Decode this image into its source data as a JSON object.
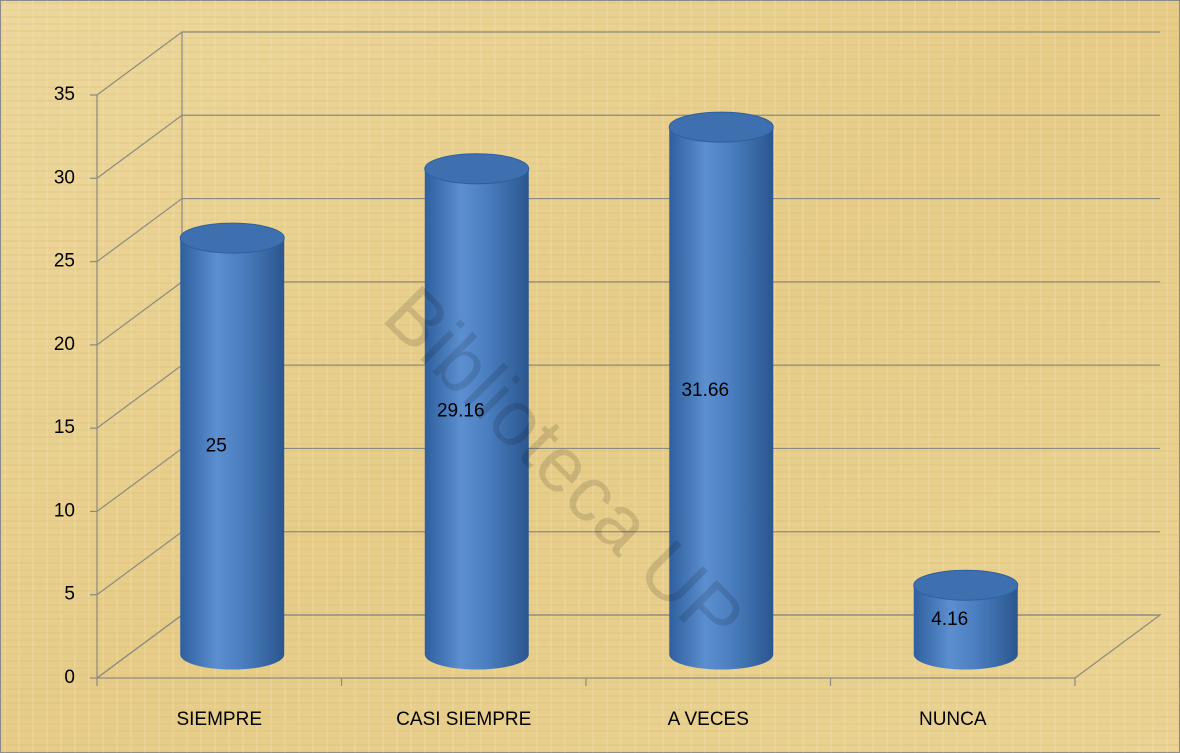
{
  "chart_data": {
    "type": "bar",
    "categories": [
      "SIEMPRE",
      "CASI SIEMPRE",
      "A VECES",
      "NUNCA"
    ],
    "values": [
      25,
      29.16,
      31.66,
      4.16
    ],
    "color": "#4a7ebf",
    "ylim": [
      0,
      35
    ],
    "yticks": [
      0,
      5,
      10,
      15,
      20,
      25,
      30,
      35
    ],
    "grid": true,
    "watermark": "Biblioteca UP"
  }
}
